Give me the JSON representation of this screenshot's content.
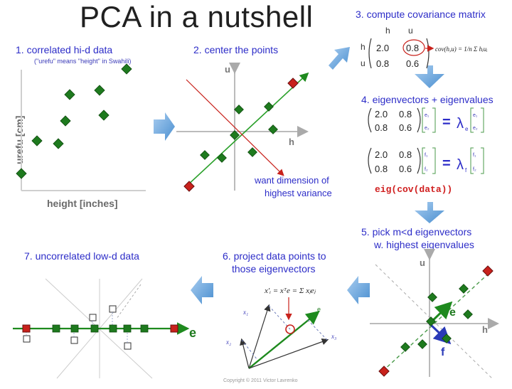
{
  "title": "PCA in a nutshell",
  "steps": {
    "s1": "1. correlated hi-d data",
    "s1_note": "(\"urefu\" means \"height\" in Swahili)",
    "s2": "2. center the points",
    "s3": "3. compute covariance matrix",
    "s4": "4. eigenvectors + eigenvalues",
    "s5a": "5. pick m<d eigenvectors",
    "s5b": "w. highest eigenvalues",
    "s6a": "6. project data points to",
    "s6b": "those eigenvectors",
    "s7": "7. uncorrelated low-d data"
  },
  "panel1": {
    "xlabel": "height [inches]",
    "ylabel": "urefu [cm]"
  },
  "panel2": {
    "u": "u",
    "h": "h",
    "note1": "want dimension of",
    "note2": "highest variance"
  },
  "cov": {
    "col_h": "h",
    "col_u": "u",
    "row_h": "h",
    "row_u": "u",
    "m11": "2.0",
    "m12": "0.8",
    "m21": "0.8",
    "m22": "0.6",
    "formula": "cov(h,u) = 1/n Σ hᵢuᵢ"
  },
  "eig": {
    "eq1": {
      "m11": "2.0",
      "m12": "0.8",
      "m21": "0.8",
      "m22": "0.6",
      "v1": "e₁",
      "v2": "e₂",
      "lam": "λ",
      "lam_sub": "e"
    },
    "eq2": {
      "m11": "2.0",
      "m12": "0.8",
      "m21": "0.8",
      "m22": "0.6",
      "v1": "f₁",
      "v2": "f₂",
      "lam": "λ",
      "lam_sub": "f"
    },
    "equals": "=",
    "code": "eig(cov(data))"
  },
  "panel5": {
    "u": "u",
    "h": "h",
    "e": "e",
    "f": "f"
  },
  "panel6": {
    "formula": "x'ᵢ = xᵀe = Σ xⱼeⱼ",
    "copyright": "Copyright © 2011 Victor Lavrenko"
  },
  "panel7": {
    "e": "e"
  },
  "colors": {
    "step_text": "#2d2dc8",
    "arrow": "#5b9bd5",
    "green": "#1e7a1e",
    "red": "#c8221c",
    "code": "#d02020"
  }
}
